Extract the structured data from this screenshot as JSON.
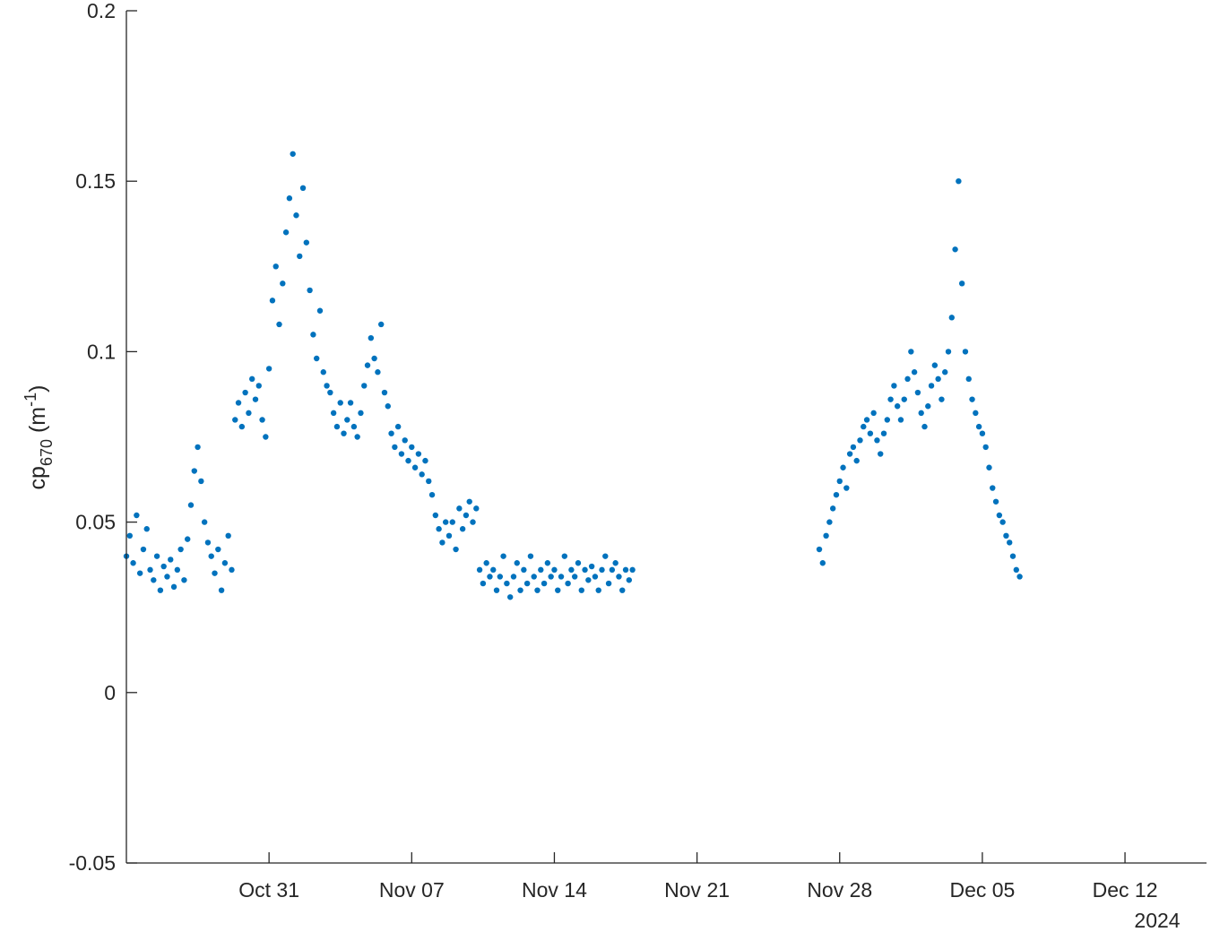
{
  "chart_data": {
    "type": "scatter",
    "title": "",
    "xlabel": "",
    "ylabel": {
      "base": "cp",
      "subscript": "670",
      "unit_open": " (m",
      "unit_sup": "-1",
      "unit_close": ")"
    },
    "x_axis": {
      "type": "date",
      "range": [
        "2024-10-24",
        "2024-12-16"
      ],
      "ticks": [
        {
          "date": "2024-10-31",
          "label": "Oct 31"
        },
        {
          "date": "2024-11-07",
          "label": "Nov 07"
        },
        {
          "date": "2024-11-14",
          "label": "Nov 14"
        },
        {
          "date": "2024-11-21",
          "label": "Nov 21"
        },
        {
          "date": "2024-11-28",
          "label": "Nov 28"
        },
        {
          "date": "2024-12-05",
          "label": "Dec 05"
        },
        {
          "date": "2024-12-12",
          "label": "Dec 12"
        }
      ],
      "secondary_label": "2024"
    },
    "y_axis": {
      "range": [
        -0.05,
        0.2
      ],
      "ticks": [
        {
          "value": 0.2,
          "label": "0.2"
        },
        {
          "value": 0.15,
          "label": "0.15"
        },
        {
          "value": 0.1,
          "label": "0.1"
        },
        {
          "value": 0.05,
          "label": "0.05"
        },
        {
          "value": 0,
          "label": "0"
        },
        {
          "value": -0.05,
          "label": "-0.05"
        }
      ]
    },
    "grid": false,
    "legend": null,
    "marker_color": "#0072BD",
    "axis_color": "#262626",
    "series": [
      {
        "points": [
          [
            "2024-10-24T00:00",
            0.04
          ],
          [
            "2024-10-24T04:00",
            0.046
          ],
          [
            "2024-10-24T08:00",
            0.038
          ],
          [
            "2024-10-24T12:00",
            0.052
          ],
          [
            "2024-10-24T16:00",
            0.035
          ],
          [
            "2024-10-24T20:00",
            0.042
          ],
          [
            "2024-10-25T00:00",
            0.048
          ],
          [
            "2024-10-25T04:00",
            0.036
          ],
          [
            "2024-10-25T08:00",
            0.033
          ],
          [
            "2024-10-25T12:00",
            0.04
          ],
          [
            "2024-10-25T16:00",
            0.03
          ],
          [
            "2024-10-25T20:00",
            0.037
          ],
          [
            "2024-10-26T00:00",
            0.034
          ],
          [
            "2024-10-26T04:00",
            0.039
          ],
          [
            "2024-10-26T08:00",
            0.031
          ],
          [
            "2024-10-26T12:00",
            0.036
          ],
          [
            "2024-10-26T16:00",
            0.042
          ],
          [
            "2024-10-26T20:00",
            0.033
          ],
          [
            "2024-10-27T00:00",
            0.045
          ],
          [
            "2024-10-27T04:00",
            0.055
          ],
          [
            "2024-10-27T08:00",
            0.065
          ],
          [
            "2024-10-27T12:00",
            0.072
          ],
          [
            "2024-10-27T16:00",
            0.062
          ],
          [
            "2024-10-27T20:00",
            0.05
          ],
          [
            "2024-10-28T00:00",
            0.044
          ],
          [
            "2024-10-28T04:00",
            0.04
          ],
          [
            "2024-10-28T08:00",
            0.035
          ],
          [
            "2024-10-28T12:00",
            0.042
          ],
          [
            "2024-10-28T16:00",
            0.03
          ],
          [
            "2024-10-28T20:00",
            0.038
          ],
          [
            "2024-10-29T00:00",
            0.046
          ],
          [
            "2024-10-29T04:00",
            0.036
          ],
          [
            "2024-10-29T08:00",
            0.08
          ],
          [
            "2024-10-29T12:00",
            0.085
          ],
          [
            "2024-10-29T16:00",
            0.078
          ],
          [
            "2024-10-29T20:00",
            0.088
          ],
          [
            "2024-10-30T00:00",
            0.082
          ],
          [
            "2024-10-30T04:00",
            0.092
          ],
          [
            "2024-10-30T08:00",
            0.086
          ],
          [
            "2024-10-30T12:00",
            0.09
          ],
          [
            "2024-10-30T16:00",
            0.08
          ],
          [
            "2024-10-30T20:00",
            0.075
          ],
          [
            "2024-10-31T00:00",
            0.095
          ],
          [
            "2024-10-31T04:00",
            0.115
          ],
          [
            "2024-10-31T08:00",
            0.125
          ],
          [
            "2024-10-31T12:00",
            0.108
          ],
          [
            "2024-10-31T16:00",
            0.12
          ],
          [
            "2024-10-31T20:00",
            0.135
          ],
          [
            "2024-11-01T00:00",
            0.145
          ],
          [
            "2024-11-01T04:00",
            0.158
          ],
          [
            "2024-11-01T08:00",
            0.14
          ],
          [
            "2024-11-01T12:00",
            0.128
          ],
          [
            "2024-11-01T16:00",
            0.148
          ],
          [
            "2024-11-01T20:00",
            0.132
          ],
          [
            "2024-11-02T00:00",
            0.118
          ],
          [
            "2024-11-02T04:00",
            0.105
          ],
          [
            "2024-11-02T08:00",
            0.098
          ],
          [
            "2024-11-02T12:00",
            0.112
          ],
          [
            "2024-11-02T16:00",
            0.094
          ],
          [
            "2024-11-02T20:00",
            0.09
          ],
          [
            "2024-11-03T00:00",
            0.088
          ],
          [
            "2024-11-03T04:00",
            0.082
          ],
          [
            "2024-11-03T08:00",
            0.078
          ],
          [
            "2024-11-03T12:00",
            0.085
          ],
          [
            "2024-11-03T16:00",
            0.076
          ],
          [
            "2024-11-03T20:00",
            0.08
          ],
          [
            "2024-11-04T00:00",
            0.085
          ],
          [
            "2024-11-04T04:00",
            0.078
          ],
          [
            "2024-11-04T08:00",
            0.075
          ],
          [
            "2024-11-04T12:00",
            0.082
          ],
          [
            "2024-11-04T16:00",
            0.09
          ],
          [
            "2024-11-04T20:00",
            0.096
          ],
          [
            "2024-11-05T00:00",
            0.104
          ],
          [
            "2024-11-05T04:00",
            0.098
          ],
          [
            "2024-11-05T08:00",
            0.094
          ],
          [
            "2024-11-05T12:00",
            0.108
          ],
          [
            "2024-11-05T16:00",
            0.088
          ],
          [
            "2024-11-05T20:00",
            0.084
          ],
          [
            "2024-11-06T00:00",
            0.076
          ],
          [
            "2024-11-06T04:00",
            0.072
          ],
          [
            "2024-11-06T08:00",
            0.078
          ],
          [
            "2024-11-06T12:00",
            0.07
          ],
          [
            "2024-11-06T16:00",
            0.074
          ],
          [
            "2024-11-06T20:00",
            0.068
          ],
          [
            "2024-11-07T00:00",
            0.072
          ],
          [
            "2024-11-07T04:00",
            0.066
          ],
          [
            "2024-11-07T08:00",
            0.07
          ],
          [
            "2024-11-07T12:00",
            0.064
          ],
          [
            "2024-11-07T16:00",
            0.068
          ],
          [
            "2024-11-07T20:00",
            0.062
          ],
          [
            "2024-11-08T00:00",
            0.058
          ],
          [
            "2024-11-08T04:00",
            0.052
          ],
          [
            "2024-11-08T08:00",
            0.048
          ],
          [
            "2024-11-08T12:00",
            0.044
          ],
          [
            "2024-11-08T16:00",
            0.05
          ],
          [
            "2024-11-08T20:00",
            0.046
          ],
          [
            "2024-11-09T00:00",
            0.05
          ],
          [
            "2024-11-09T04:00",
            0.042
          ],
          [
            "2024-11-09T08:00",
            0.054
          ],
          [
            "2024-11-09T12:00",
            0.048
          ],
          [
            "2024-11-09T16:00",
            0.052
          ],
          [
            "2024-11-09T20:00",
            0.056
          ],
          [
            "2024-11-10T00:00",
            0.05
          ],
          [
            "2024-11-10T04:00",
            0.054
          ],
          [
            "2024-11-10T08:00",
            0.036
          ],
          [
            "2024-11-10T12:00",
            0.032
          ],
          [
            "2024-11-10T16:00",
            0.038
          ],
          [
            "2024-11-10T20:00",
            0.034
          ],
          [
            "2024-11-11T00:00",
            0.036
          ],
          [
            "2024-11-11T04:00",
            0.03
          ],
          [
            "2024-11-11T08:00",
            0.034
          ],
          [
            "2024-11-11T12:00",
            0.04
          ],
          [
            "2024-11-11T16:00",
            0.032
          ],
          [
            "2024-11-11T20:00",
            0.028
          ],
          [
            "2024-11-12T00:00",
            0.034
          ],
          [
            "2024-11-12T04:00",
            0.038
          ],
          [
            "2024-11-12T08:00",
            0.03
          ],
          [
            "2024-11-12T12:00",
            0.036
          ],
          [
            "2024-11-12T16:00",
            0.032
          ],
          [
            "2024-11-12T20:00",
            0.04
          ],
          [
            "2024-11-13T00:00",
            0.034
          ],
          [
            "2024-11-13T04:00",
            0.03
          ],
          [
            "2024-11-13T08:00",
            0.036
          ],
          [
            "2024-11-13T12:00",
            0.032
          ],
          [
            "2024-11-13T16:00",
            0.038
          ],
          [
            "2024-11-13T20:00",
            0.034
          ],
          [
            "2024-11-14T00:00",
            0.036
          ],
          [
            "2024-11-14T04:00",
            0.03
          ],
          [
            "2024-11-14T08:00",
            0.034
          ],
          [
            "2024-11-14T12:00",
            0.04
          ],
          [
            "2024-11-14T16:00",
            0.032
          ],
          [
            "2024-11-14T20:00",
            0.036
          ],
          [
            "2024-11-15T00:00",
            0.034
          ],
          [
            "2024-11-15T04:00",
            0.038
          ],
          [
            "2024-11-15T08:00",
            0.03
          ],
          [
            "2024-11-15T12:00",
            0.036
          ],
          [
            "2024-11-15T16:00",
            0.033
          ],
          [
            "2024-11-15T20:00",
            0.037
          ],
          [
            "2024-11-16T00:00",
            0.034
          ],
          [
            "2024-11-16T04:00",
            0.03
          ],
          [
            "2024-11-16T08:00",
            0.036
          ],
          [
            "2024-11-16T12:00",
            0.04
          ],
          [
            "2024-11-16T16:00",
            0.032
          ],
          [
            "2024-11-16T20:00",
            0.036
          ],
          [
            "2024-11-17T00:00",
            0.038
          ],
          [
            "2024-11-17T04:00",
            0.034
          ],
          [
            "2024-11-17T08:00",
            0.03
          ],
          [
            "2024-11-17T12:00",
            0.036
          ],
          [
            "2024-11-17T16:00",
            0.033
          ],
          [
            "2024-11-17T20:00",
            0.036
          ],
          [
            "2024-11-27T00:00",
            0.042
          ],
          [
            "2024-11-27T04:00",
            0.038
          ],
          [
            "2024-11-27T08:00",
            0.046
          ],
          [
            "2024-11-27T12:00",
            0.05
          ],
          [
            "2024-11-27T16:00",
            0.054
          ],
          [
            "2024-11-27T20:00",
            0.058
          ],
          [
            "2024-11-28T00:00",
            0.062
          ],
          [
            "2024-11-28T04:00",
            0.066
          ],
          [
            "2024-11-28T08:00",
            0.06
          ],
          [
            "2024-11-28T12:00",
            0.07
          ],
          [
            "2024-11-28T16:00",
            0.072
          ],
          [
            "2024-11-28T20:00",
            0.068
          ],
          [
            "2024-11-29T00:00",
            0.074
          ],
          [
            "2024-11-29T04:00",
            0.078
          ],
          [
            "2024-11-29T08:00",
            0.08
          ],
          [
            "2024-11-29T12:00",
            0.076
          ],
          [
            "2024-11-29T16:00",
            0.082
          ],
          [
            "2024-11-29T20:00",
            0.074
          ],
          [
            "2024-11-30T00:00",
            0.07
          ],
          [
            "2024-11-30T04:00",
            0.076
          ],
          [
            "2024-11-30T08:00",
            0.08
          ],
          [
            "2024-11-30T12:00",
            0.086
          ],
          [
            "2024-11-30T16:00",
            0.09
          ],
          [
            "2024-11-30T20:00",
            0.084
          ],
          [
            "2024-12-01T00:00",
            0.08
          ],
          [
            "2024-12-01T04:00",
            0.086
          ],
          [
            "2024-12-01T08:00",
            0.092
          ],
          [
            "2024-12-01T12:00",
            0.1
          ],
          [
            "2024-12-01T16:00",
            0.094
          ],
          [
            "2024-12-01T20:00",
            0.088
          ],
          [
            "2024-12-02T00:00",
            0.082
          ],
          [
            "2024-12-02T04:00",
            0.078
          ],
          [
            "2024-12-02T08:00",
            0.084
          ],
          [
            "2024-12-02T12:00",
            0.09
          ],
          [
            "2024-12-02T16:00",
            0.096
          ],
          [
            "2024-12-02T20:00",
            0.092
          ],
          [
            "2024-12-03T00:00",
            0.086
          ],
          [
            "2024-12-03T04:00",
            0.094
          ],
          [
            "2024-12-03T08:00",
            0.1
          ],
          [
            "2024-12-03T12:00",
            0.11
          ],
          [
            "2024-12-03T16:00",
            0.13
          ],
          [
            "2024-12-03T20:00",
            0.15
          ],
          [
            "2024-12-04T00:00",
            0.12
          ],
          [
            "2024-12-04T04:00",
            0.1
          ],
          [
            "2024-12-04T08:00",
            0.092
          ],
          [
            "2024-12-04T12:00",
            0.086
          ],
          [
            "2024-12-04T16:00",
            0.082
          ],
          [
            "2024-12-04T20:00",
            0.078
          ],
          [
            "2024-12-05T00:00",
            0.076
          ],
          [
            "2024-12-05T04:00",
            0.072
          ],
          [
            "2024-12-05T08:00",
            0.066
          ],
          [
            "2024-12-05T12:00",
            0.06
          ],
          [
            "2024-12-05T16:00",
            0.056
          ],
          [
            "2024-12-05T20:00",
            0.052
          ],
          [
            "2024-12-06T00:00",
            0.05
          ],
          [
            "2024-12-06T04:00",
            0.046
          ],
          [
            "2024-12-06T08:00",
            0.044
          ],
          [
            "2024-12-06T12:00",
            0.04
          ],
          [
            "2024-12-06T16:00",
            0.036
          ],
          [
            "2024-12-06T20:00",
            0.034
          ]
        ]
      }
    ]
  }
}
